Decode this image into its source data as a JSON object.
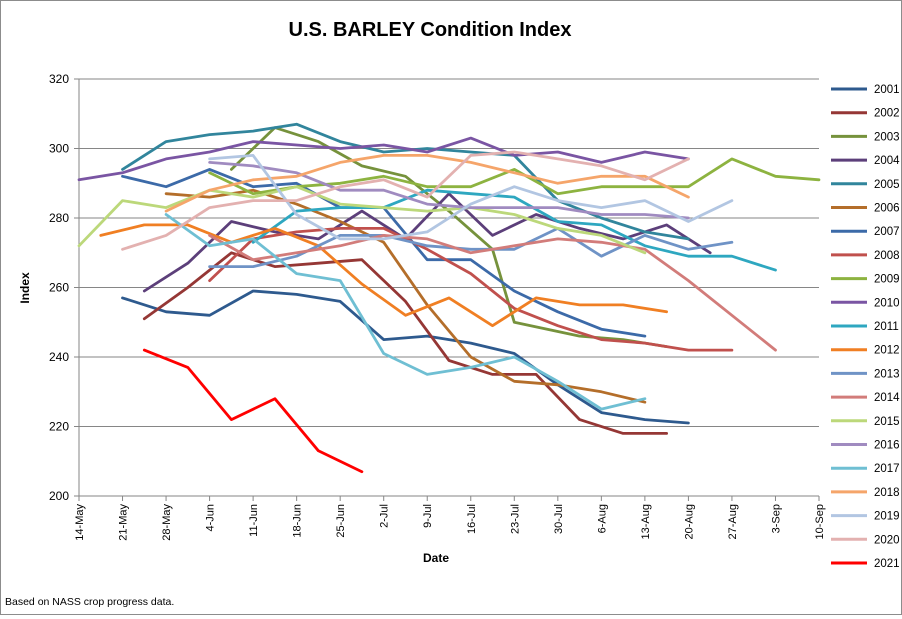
{
  "chart_data": {
    "type": "line",
    "title": "U.S. BARLEY Condition Index",
    "xlabel": "Date",
    "ylabel": "Index",
    "ylim": [
      200,
      320
    ],
    "yticks": [
      200,
      220,
      240,
      260,
      280,
      300,
      320
    ],
    "categories": [
      "14-May",
      "21-May",
      "28-May",
      "4-Jun",
      "11-Jun",
      "18-Jun",
      "25-Jun",
      "2-Jul",
      "9-Jul",
      "16-Jul",
      "23-Jul",
      "30-Jul",
      "6-Aug",
      "13-Aug",
      "20-Aug",
      "27-Aug",
      "3-Sep",
      "10-Sep"
    ],
    "grid": "horizontal",
    "legend_position": "right",
    "series": [
      {
        "name": "2001",
        "color": "#2e5a8e",
        "points": [
          [
            1,
            257
          ],
          [
            2,
            253
          ],
          [
            3,
            252
          ],
          [
            4,
            259
          ],
          [
            5,
            258
          ],
          [
            6,
            256
          ],
          [
            7,
            245
          ],
          [
            8,
            246
          ],
          [
            9,
            244
          ],
          [
            10,
            241
          ],
          [
            11,
            232
          ],
          [
            12,
            224
          ],
          [
            13,
            222
          ],
          [
            14,
            221
          ]
        ]
      },
      {
        "name": "2002",
        "color": "#953735",
        "points": [
          [
            1.5,
            251
          ],
          [
            2.5,
            260
          ],
          [
            3.5,
            270
          ],
          [
            4.5,
            266
          ],
          [
            5.5,
            267
          ],
          [
            6.5,
            268
          ],
          [
            7.5,
            256
          ],
          [
            8.5,
            239
          ],
          [
            9.5,
            235
          ],
          [
            10.5,
            235
          ],
          [
            11.5,
            222
          ],
          [
            12.5,
            218
          ],
          [
            13.5,
            218
          ]
        ]
      },
      {
        "name": "2003",
        "color": "#76923c",
        "points": [
          [
            3.5,
            294
          ],
          [
            4.5,
            306
          ],
          [
            5.5,
            302
          ],
          [
            6.5,
            295
          ],
          [
            7.5,
            292
          ],
          [
            8.5,
            282
          ],
          [
            9.5,
            271
          ],
          [
            10,
            250
          ],
          [
            11.5,
            246
          ],
          [
            12.5,
            245
          ],
          [
            13.5,
            243
          ]
        ]
      },
      {
        "name": "2004",
        "color": "#5c3f7a",
        "points": [
          [
            1.5,
            259
          ],
          [
            2.5,
            267
          ],
          [
            3.5,
            279
          ],
          [
            4.5,
            276
          ],
          [
            5.5,
            274
          ],
          [
            6.5,
            282
          ],
          [
            7.5,
            274
          ],
          [
            8.5,
            287
          ],
          [
            9.5,
            275
          ],
          [
            10.5,
            281
          ],
          [
            11.5,
            277
          ],
          [
            12.5,
            274
          ],
          [
            13.5,
            278
          ],
          [
            14.5,
            270
          ]
        ]
      },
      {
        "name": "2005",
        "color": "#31859c",
        "points": [
          [
            1,
            294
          ],
          [
            2,
            302
          ],
          [
            3,
            304
          ],
          [
            4,
            305
          ],
          [
            5,
            307
          ],
          [
            6,
            302
          ],
          [
            7,
            299
          ],
          [
            8,
            300
          ],
          [
            9,
            299
          ],
          [
            10,
            298
          ],
          [
            11,
            285
          ],
          [
            12,
            280
          ],
          [
            13,
            276
          ],
          [
            14,
            274
          ]
        ]
      },
      {
        "name": "2006",
        "color": "#b46e2a",
        "points": [
          [
            2,
            287
          ],
          [
            3,
            286
          ],
          [
            4,
            288
          ],
          [
            5,
            284
          ],
          [
            6,
            279
          ],
          [
            7,
            273
          ],
          [
            8,
            255
          ],
          [
            9,
            240
          ],
          [
            10,
            233
          ],
          [
            11,
            232
          ],
          [
            12,
            230
          ],
          [
            13,
            227
          ]
        ]
      },
      {
        "name": "2007",
        "color": "#3c6aa8",
        "points": [
          [
            1,
            292
          ],
          [
            2,
            289
          ],
          [
            3,
            294
          ],
          [
            4,
            289
          ],
          [
            5,
            290
          ],
          [
            6,
            283
          ],
          [
            7,
            283
          ],
          [
            8,
            268
          ],
          [
            9,
            268
          ],
          [
            10,
            259
          ],
          [
            11,
            253
          ],
          [
            12,
            248
          ],
          [
            13,
            246
          ]
        ]
      },
      {
        "name": "2008",
        "color": "#c0504d",
        "points": [
          [
            3,
            262
          ],
          [
            4,
            274
          ],
          [
            5,
            276
          ],
          [
            6,
            277
          ],
          [
            7,
            277
          ],
          [
            8,
            271
          ],
          [
            9,
            264
          ],
          [
            10,
            254
          ],
          [
            11,
            249
          ],
          [
            12,
            245
          ],
          [
            13,
            244
          ],
          [
            14,
            242
          ],
          [
            15,
            242
          ]
        ]
      },
      {
        "name": "2009",
        "color": "#8db340",
        "points": [
          [
            3,
            293
          ],
          [
            4,
            287
          ],
          [
            5,
            289
          ],
          [
            6,
            290
          ],
          [
            7,
            292
          ],
          [
            8,
            289
          ],
          [
            9,
            289
          ],
          [
            10,
            294
          ],
          [
            11,
            287
          ],
          [
            12,
            289
          ],
          [
            13,
            289
          ],
          [
            14,
            289
          ],
          [
            15,
            297
          ],
          [
            16,
            292
          ],
          [
            17,
            291
          ]
        ]
      },
      {
        "name": "2010",
        "color": "#7a55a3",
        "points": [
          [
            0,
            291
          ],
          [
            1,
            293
          ],
          [
            2,
            297
          ],
          [
            3,
            299
          ],
          [
            4,
            302
          ],
          [
            5,
            301
          ],
          [
            6,
            300
          ],
          [
            7,
            301
          ],
          [
            8,
            299
          ],
          [
            9,
            303
          ],
          [
            10,
            298
          ],
          [
            11,
            299
          ],
          [
            12,
            296
          ],
          [
            13,
            299
          ],
          [
            14,
            297
          ]
        ]
      },
      {
        "name": "2011",
        "color": "#2ea7c0",
        "points": [
          [
            4,
            273
          ],
          [
            5,
            282
          ],
          [
            6,
            283
          ],
          [
            7,
            283
          ],
          [
            8,
            288
          ],
          [
            9,
            287
          ],
          [
            10,
            286
          ],
          [
            11,
            279
          ],
          [
            12,
            278
          ],
          [
            13,
            272
          ],
          [
            14,
            269
          ],
          [
            15,
            269
          ],
          [
            16,
            265
          ]
        ]
      },
      {
        "name": "2012",
        "color": "#f07f23",
        "points": [
          [
            0.5,
            275
          ],
          [
            1.5,
            278
          ],
          [
            2.5,
            278
          ],
          [
            3.5,
            273
          ],
          [
            4.5,
            277
          ],
          [
            5.5,
            272
          ],
          [
            6.5,
            261
          ],
          [
            7.5,
            252
          ],
          [
            8.5,
            257
          ],
          [
            9.5,
            249
          ],
          [
            10.5,
            257
          ],
          [
            11.5,
            255
          ],
          [
            12.5,
            255
          ],
          [
            13.5,
            253
          ]
        ]
      },
      {
        "name": "2013",
        "color": "#6f93c6",
        "points": [
          [
            3,
            266
          ],
          [
            4,
            266
          ],
          [
            5,
            269
          ],
          [
            6,
            275
          ],
          [
            7,
            275
          ],
          [
            8,
            272
          ],
          [
            9,
            271
          ],
          [
            10,
            271
          ],
          [
            11,
            277
          ],
          [
            12,
            269
          ],
          [
            13,
            275
          ],
          [
            14,
            271
          ],
          [
            15,
            273
          ]
        ]
      },
      {
        "name": "2014",
        "color": "#d27c7a",
        "points": [
          [
            3,
            275
          ],
          [
            4,
            268
          ],
          [
            5,
            270
          ],
          [
            6,
            272
          ],
          [
            7,
            275
          ],
          [
            8,
            274
          ],
          [
            9,
            270
          ],
          [
            10,
            272
          ],
          [
            11,
            274
          ],
          [
            12,
            273
          ],
          [
            13,
            271
          ],
          [
            14,
            262
          ],
          [
            15,
            252
          ],
          [
            16,
            242
          ]
        ]
      },
      {
        "name": "2015",
        "color": "#bcd87a",
        "points": [
          [
            0,
            272
          ],
          [
            1,
            285
          ],
          [
            2,
            283
          ],
          [
            3,
            288
          ],
          [
            4,
            286
          ],
          [
            5,
            289
          ],
          [
            6,
            284
          ],
          [
            7,
            283
          ],
          [
            8,
            282
          ],
          [
            9,
            283
          ],
          [
            10,
            281
          ],
          [
            11,
            277
          ],
          [
            12,
            275
          ],
          [
            13,
            270
          ]
        ]
      },
      {
        "name": "2016",
        "color": "#a08bc0",
        "points": [
          [
            3,
            296
          ],
          [
            4,
            295
          ],
          [
            5,
            293
          ],
          [
            6,
            288
          ],
          [
            7,
            288
          ],
          [
            8,
            284
          ],
          [
            9,
            283
          ],
          [
            10,
            283
          ],
          [
            11,
            283
          ],
          [
            12,
            281
          ],
          [
            13,
            281
          ],
          [
            14,
            280
          ]
        ]
      },
      {
        "name": "2017",
        "color": "#6fbfd3",
        "points": [
          [
            2,
            281
          ],
          [
            3,
            272
          ],
          [
            4,
            274
          ],
          [
            5,
            264
          ],
          [
            6,
            262
          ],
          [
            7,
            241
          ],
          [
            8,
            235
          ],
          [
            9,
            237
          ],
          [
            10,
            240
          ],
          [
            11,
            233
          ],
          [
            12,
            225
          ],
          [
            13,
            228
          ]
        ]
      },
      {
        "name": "2018",
        "color": "#f5a56a",
        "points": [
          [
            2,
            282
          ],
          [
            3,
            288
          ],
          [
            4,
            291
          ],
          [
            5,
            292
          ],
          [
            6,
            296
          ],
          [
            7,
            298
          ],
          [
            8,
            298
          ],
          [
            9,
            296
          ],
          [
            10,
            293
          ],
          [
            11,
            290
          ],
          [
            12,
            292
          ],
          [
            13,
            292
          ],
          [
            14,
            286
          ]
        ]
      },
      {
        "name": "2019",
        "color": "#b2c6e2",
        "points": [
          [
            3,
            297
          ],
          [
            4,
            298
          ],
          [
            5,
            281
          ],
          [
            6,
            274
          ],
          [
            7,
            274
          ],
          [
            8,
            276
          ],
          [
            9,
            284
          ],
          [
            10,
            289
          ],
          [
            11,
            285
          ],
          [
            12,
            283
          ],
          [
            13,
            285
          ],
          [
            14,
            279
          ],
          [
            15,
            285
          ]
        ]
      },
      {
        "name": "2020",
        "color": "#e3b1b0",
        "points": [
          [
            1,
            271
          ],
          [
            2,
            275
          ],
          [
            3,
            283
          ],
          [
            4,
            285
          ],
          [
            5,
            285
          ],
          [
            6,
            289
          ],
          [
            7,
            291
          ],
          [
            8,
            286
          ],
          [
            9,
            298
          ],
          [
            10,
            299
          ],
          [
            11,
            297
          ],
          [
            12,
            295
          ],
          [
            13,
            291
          ],
          [
            14,
            297
          ]
        ]
      },
      {
        "name": "2021",
        "color": "#ff0000",
        "points": [
          [
            1.5,
            242
          ],
          [
            2.5,
            237
          ],
          [
            3.5,
            222
          ],
          [
            4.5,
            228
          ],
          [
            5.5,
            213
          ],
          [
            6.5,
            207
          ]
        ]
      }
    ]
  },
  "footnote": "Based on NASS crop progress data."
}
